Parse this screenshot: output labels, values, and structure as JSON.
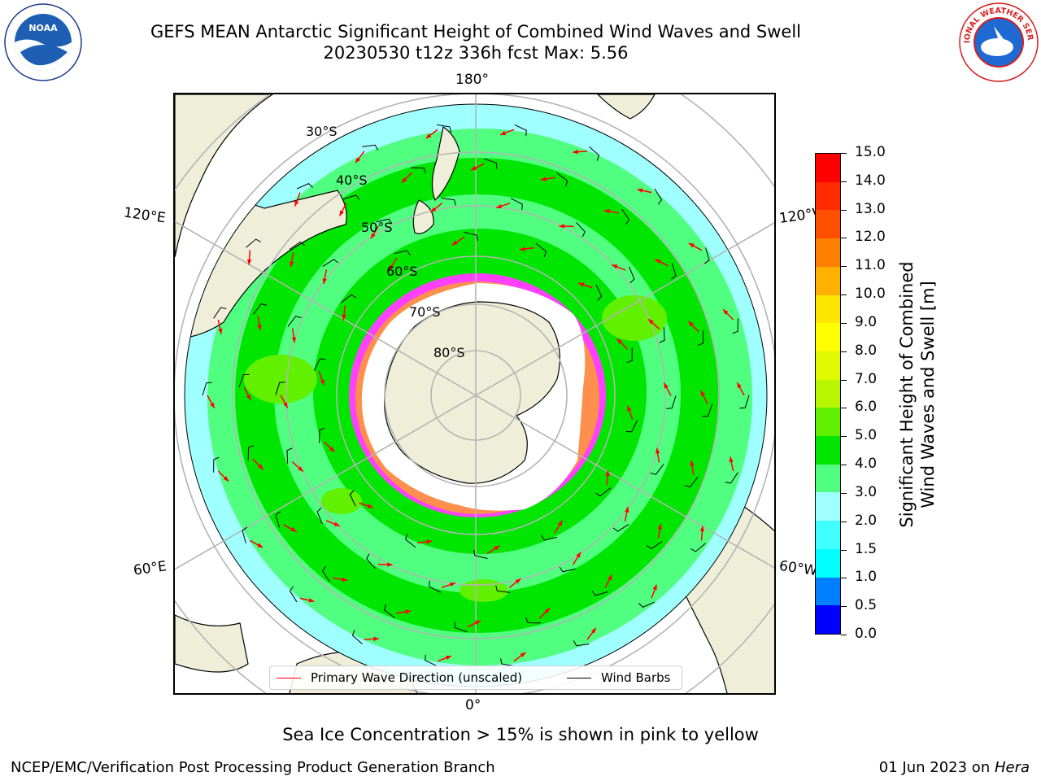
{
  "header": {
    "title_line1": "GEFS MEAN Antarctic Significant Height of Combined Wind Waves and Swell",
    "title_line2": "20230530 t12z 336h fcst   Max: 5.56"
  },
  "logos": {
    "left": {
      "name": "noaa-logo",
      "text": "NOAA",
      "ring_text": "NATIONAL OCEANIC AND ATMOSPHERIC ADMINISTRATION · U.S. DEPARTMENT OF COMMERCE"
    },
    "right": {
      "name": "nws-logo",
      "ring_text": "NATIONAL WEATHER SERVICE"
    }
  },
  "map": {
    "projection": "south-polar-stereographic",
    "meridian_labels": {
      "top": "180°",
      "bottom": "0°",
      "upper_left": "120°E",
      "upper_right": "120°W",
      "lower_left": "60°E",
      "lower_right": "60°W"
    },
    "latitude_labels": [
      "30°S",
      "40°S",
      "50°S",
      "60°S",
      "70°S",
      "80°S"
    ],
    "colors": {
      "land": "#efeed9",
      "ice_sheet": "#ffffff",
      "sea_ice_edge": "#ff40ff",
      "grid": "#b4b4b4",
      "arrow": "#ff0000",
      "barb": "#000000"
    }
  },
  "legend": {
    "wave_direction": {
      "label": "Primary Wave Direction (unscaled)",
      "color": "#ff0000"
    },
    "wind_barbs": {
      "label": "Wind Barbs",
      "color": "#000000"
    }
  },
  "colorbar": {
    "label_line1": "Significant Height of Combined",
    "label_line2": "Wind Waves and Swell [m]",
    "ticks": [
      "0.0",
      "0.5",
      "1.0",
      "1.5",
      "2.0",
      "3.0",
      "4.0",
      "5.0",
      "6.0",
      "7.0",
      "8.0",
      "9.0",
      "10.0",
      "11.0",
      "12.0",
      "13.0",
      "14.0",
      "15.0"
    ],
    "colors": [
      "#0000ff",
      "#0080ff",
      "#00ffff",
      "#40ffff",
      "#a0ffff",
      "#50ff80",
      "#00e600",
      "#60f000",
      "#b8f500",
      "#e0f800",
      "#ffff00",
      "#ffe600",
      "#ffb000",
      "#ff8000",
      "#ff5000",
      "#ff2a00",
      "#ff0000"
    ]
  },
  "note": "Sea Ice Concentration > 15% is shown in pink to yellow",
  "footer": {
    "left": "NCEP/EMC/Verification Post Processing Product Generation Branch",
    "right_prefix": "01 Jun 2023 on ",
    "right_host": "Hera"
  }
}
